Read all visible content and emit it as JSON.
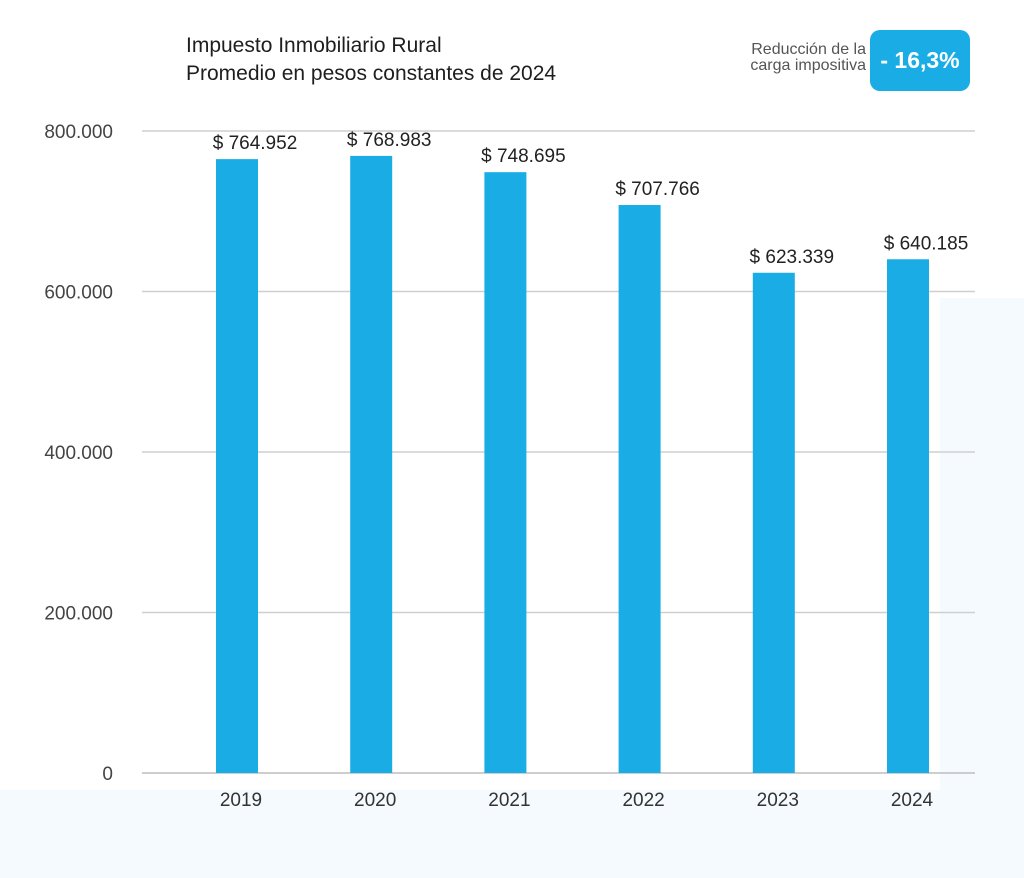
{
  "chart_data": {
    "type": "bar",
    "title": "Impuesto Inmobiliario Rural",
    "subtitle": "Promedio en pesos constantes de 2024",
    "categories": [
      "2019",
      "2020",
      "2021",
      "2022",
      "2023",
      "2024"
    ],
    "values": [
      764952,
      768983,
      748695,
      707766,
      623339,
      640185
    ],
    "data_labels": [
      "$ 764.952",
      "$ 768.983",
      "$ 748.695",
      "$ 707.766",
      "$ 623.339",
      "$ 640.185"
    ],
    "xlabel": "",
    "ylabel": "",
    "ylim": [
      0,
      800000
    ],
    "yticks": [
      0,
      200000,
      400000,
      600000,
      800000
    ],
    "ytick_labels": [
      "0",
      "200.000",
      "400.000",
      "600.000",
      "800.000"
    ],
    "grid": true,
    "bar_color": "#1aade5"
  },
  "annotation": {
    "label_line1": "Reducción de la",
    "label_line2": "carga impositiva",
    "value": "- 16,3%",
    "color": "#1aade5"
  }
}
